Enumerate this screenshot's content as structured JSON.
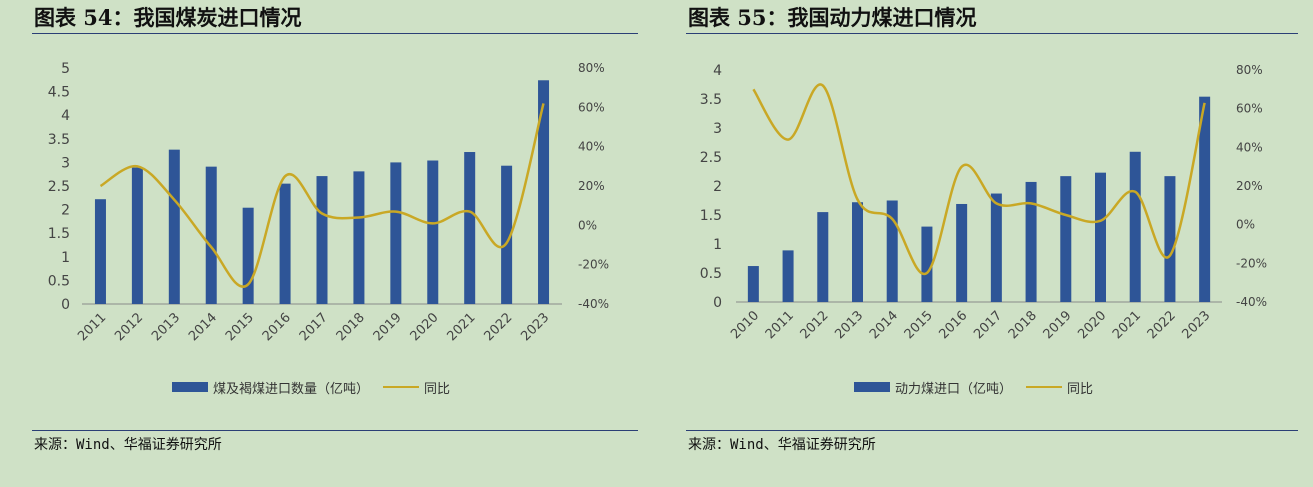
{
  "colors": {
    "bar": "#2e5597",
    "line": "#c9a825",
    "rule": "#2b3f75",
    "background": "#cfe1c6"
  },
  "left": {
    "title": "图表 54：我国煤炭进口情况",
    "source": "来源：Wind、华福证券研究所",
    "legend": {
      "bar": "煤及褐煤进口数量（亿吨）",
      "line": "同比"
    }
  },
  "right": {
    "title": "图表 55：我国动力煤进口情况",
    "source": "来源：Wind、华福证券研究所",
    "legend": {
      "bar": "动力煤进口（亿吨）",
      "line": "同比"
    }
  },
  "chart_data": [
    {
      "type": "bar",
      "title": "图表 54：我国煤炭进口情况",
      "categories": [
        "2011",
        "2012",
        "2013",
        "2014",
        "2015",
        "2016",
        "2017",
        "2018",
        "2019",
        "2020",
        "2021",
        "2022",
        "2023"
      ],
      "series": [
        {
          "name": "煤及褐煤进口数量（亿吨）",
          "type": "bar",
          "axis": "left",
          "values": [
            2.22,
            2.89,
            3.27,
            2.91,
            2.04,
            2.55,
            2.71,
            2.81,
            3.0,
            3.04,
            3.22,
            2.93,
            4.74
          ]
        },
        {
          "name": "同比",
          "type": "line",
          "axis": "right",
          "values": [
            20,
            30,
            13,
            -11,
            -30,
            25,
            6,
            4,
            7,
            1,
            7,
            -9,
            62
          ]
        }
      ],
      "y_left": {
        "min": 0,
        "max": 5,
        "ticks": [
          "0",
          "0.5",
          "1",
          "1.5",
          "2",
          "2.5",
          "3",
          "3.5",
          "4",
          "4.5",
          "5"
        ]
      },
      "y_right": {
        "min": -40,
        "max": 80,
        "ticks": [
          "-40%",
          "-20%",
          "0%",
          "20%",
          "40%",
          "60%",
          "80%"
        ]
      },
      "legend_position": "bottom",
      "grid": false
    },
    {
      "type": "bar",
      "title": "图表 55：我国动力煤进口情况",
      "categories": [
        "2010",
        "2011",
        "2012",
        "2013",
        "2014",
        "2015",
        "2016",
        "2017",
        "2018",
        "2019",
        "2020",
        "2021",
        "2022",
        "2023"
      ],
      "series": [
        {
          "name": "动力煤进口（亿吨）",
          "type": "bar",
          "axis": "left",
          "values": [
            0.62,
            0.89,
            1.55,
            1.72,
            1.75,
            1.3,
            1.69,
            1.87,
            2.07,
            2.17,
            2.23,
            2.59,
            2.17,
            3.54
          ]
        },
        {
          "name": "同比",
          "type": "line",
          "axis": "right",
          "values": [
            70,
            44,
            72,
            13,
            3,
            -25,
            30,
            11,
            11,
            5,
            2,
            17,
            -16,
            63
          ]
        }
      ],
      "y_left": {
        "min": 0,
        "max": 4,
        "ticks": [
          "0",
          "0.5",
          "1",
          "1.5",
          "2",
          "2.5",
          "3",
          "3.5",
          "4"
        ]
      },
      "y_right": {
        "min": -40,
        "max": 80,
        "ticks": [
          "-40%",
          "-20%",
          "0%",
          "20%",
          "40%",
          "60%",
          "80%"
        ]
      },
      "legend_position": "bottom",
      "grid": false
    }
  ]
}
